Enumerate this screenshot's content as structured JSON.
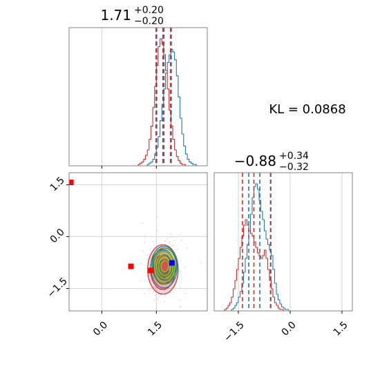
{
  "chart_data": [
    {
      "type": "histogram",
      "panel": "top-left",
      "title_value": "1.71",
      "title_plus": "+0.20",
      "title_minus": "−0.20",
      "xlim": [
        -0.9,
        2.9
      ],
      "grid": true,
      "series": [
        {
          "name": "blue",
          "color": "#1f77b4",
          "quantiles": [
            1.51,
            1.71,
            1.91
          ],
          "bins": [
            1.2,
            1.25,
            1.3,
            1.35,
            1.4,
            1.45,
            1.5,
            1.55,
            1.6,
            1.65,
            1.7,
            1.75,
            1.8,
            1.85,
            1.9,
            1.95,
            2.0,
            2.05,
            2.1,
            2.15,
            2.2,
            2.25,
            2.3,
            2.35,
            2.4,
            2.45,
            2.5,
            2.55,
            2.6,
            2.65
          ],
          "counts": [
            0,
            1,
            2,
            3,
            5,
            9,
            14,
            22,
            34,
            46,
            58,
            70,
            78,
            84,
            88,
            86,
            80,
            68,
            52,
            36,
            24,
            15,
            9,
            5,
            3,
            2,
            1,
            1,
            0,
            0
          ]
        },
        {
          "name": "red",
          "color": "#d62728",
          "quantiles": [
            1.49,
            1.68,
            1.89
          ],
          "bins": [
            0.95,
            1.0,
            1.05,
            1.1,
            1.15,
            1.2,
            1.25,
            1.3,
            1.35,
            1.4,
            1.45,
            1.5,
            1.55,
            1.6,
            1.65,
            1.7,
            1.75,
            1.8,
            1.85,
            1.9,
            1.95,
            2.0,
            2.05,
            2.1,
            2.15,
            2.2,
            2.25,
            2.3
          ],
          "counts": [
            0,
            1,
            2,
            3,
            5,
            8,
            12,
            20,
            30,
            44,
            60,
            76,
            90,
            96,
            92,
            84,
            72,
            58,
            42,
            30,
            20,
            12,
            7,
            4,
            2,
            1,
            1,
            0
          ]
        }
      ]
    },
    {
      "type": "histogram",
      "panel": "bottom-right",
      "title_value": "−0.88",
      "title_plus": "+0.34",
      "title_minus": "−0.32",
      "xlim": [
        -2.2,
        1.8
      ],
      "xticks": [
        "−1.5",
        "0.0",
        "1.5"
      ],
      "xtick_values": [
        -1.5,
        0.0,
        1.5
      ],
      "grid": true,
      "series": [
        {
          "name": "blue",
          "color": "#1f77b4",
          "quantiles": [
            -1.2,
            -0.88,
            -0.56
          ],
          "bins": [
            -1.75,
            -1.7,
            -1.65,
            -1.6,
            -1.55,
            -1.5,
            -1.45,
            -1.4,
            -1.35,
            -1.3,
            -1.25,
            -1.2,
            -1.15,
            -1.1,
            -1.05,
            -1.0,
            -0.95,
            -0.9,
            -0.85,
            -0.8,
            -0.75,
            -0.7,
            -0.65,
            -0.6,
            -0.55,
            -0.5,
            -0.45,
            -0.4,
            -0.35,
            -0.3,
            -0.25,
            -0.2,
            -0.15,
            -0.1,
            -0.05,
            0.0
          ],
          "counts": [
            0,
            1,
            2,
            4,
            6,
            10,
            14,
            20,
            28,
            38,
            48,
            58,
            70,
            82,
            90,
            92,
            88,
            80,
            72,
            66,
            58,
            52,
            48,
            44,
            40,
            30,
            20,
            12,
            8,
            5,
            3,
            2,
            1,
            1,
            0,
            0
          ]
        },
        {
          "name": "red",
          "color": "#d62728",
          "quantiles": [
            -1.38,
            -1.05,
            -0.57
          ],
          "bins": [
            -1.95,
            -1.9,
            -1.85,
            -1.8,
            -1.75,
            -1.7,
            -1.65,
            -1.6,
            -1.55,
            -1.5,
            -1.45,
            -1.4,
            -1.35,
            -1.3,
            -1.25,
            -1.2,
            -1.15,
            -1.1,
            -1.05,
            -1.0,
            -0.95,
            -0.9,
            -0.85,
            -0.8,
            -0.75,
            -0.7,
            -0.65,
            -0.6,
            -0.55,
            -0.5,
            -0.45,
            -0.4,
            -0.35,
            -0.3,
            -0.25,
            -0.2
          ],
          "counts": [
            0,
            1,
            2,
            4,
            6,
            10,
            16,
            22,
            30,
            38,
            46,
            54,
            62,
            66,
            62,
            58,
            56,
            54,
            50,
            46,
            42,
            40,
            38,
            40,
            44,
            38,
            30,
            22,
            16,
            10,
            6,
            4,
            2,
            1,
            1,
            0
          ]
        }
      ]
    },
    {
      "type": "contour",
      "panel": "bottom-left",
      "xlim": [
        -0.9,
        2.9
      ],
      "ylim": [
        -2.15,
        1.85
      ],
      "xticks": [
        "0.0",
        "1.5"
      ],
      "xtick_values": [
        0.0,
        1.5
      ],
      "yticks": [
        "1.5",
        "0.0",
        "−1.5"
      ],
      "ytick_values": [
        1.5,
        0.0,
        -1.5
      ],
      "grid": true,
      "contours": [
        {
          "name": "red",
          "color": "#d62728",
          "fill": true,
          "center": [
            1.68,
            -0.95
          ],
          "sigmas": [
            0.2,
            0.34
          ]
        },
        {
          "name": "blue",
          "color": "#1f77b4",
          "fill": false,
          "center": [
            1.71,
            -0.88
          ],
          "sigmas": [
            0.18,
            0.3
          ]
        },
        {
          "name": "green",
          "color": "#2ca02c",
          "fill": false,
          "center": [
            1.72,
            -0.85
          ],
          "sigmas": [
            0.17,
            0.27
          ]
        },
        {
          "name": "yellow",
          "color": "#bcbd22",
          "fill": false,
          "center": [
            1.73,
            -0.86
          ],
          "sigmas": [
            0.15,
            0.24
          ]
        }
      ],
      "markers": [
        {
          "name": "red",
          "color": "#ff0000",
          "shape": "square",
          "x": -0.85,
          "y": 1.57
        },
        {
          "name": "red",
          "color": "#ff0000",
          "shape": "square",
          "x": 0.8,
          "y": -0.86
        },
        {
          "name": "red",
          "color": "#ff0000",
          "shape": "square",
          "x": 1.35,
          "y": -0.98
        },
        {
          "name": "blue",
          "color": "#0000ff",
          "shape": "square",
          "x": 1.93,
          "y": -0.76
        }
      ]
    }
  ],
  "annotation": {
    "kl_text": "KL = 0.0868"
  }
}
